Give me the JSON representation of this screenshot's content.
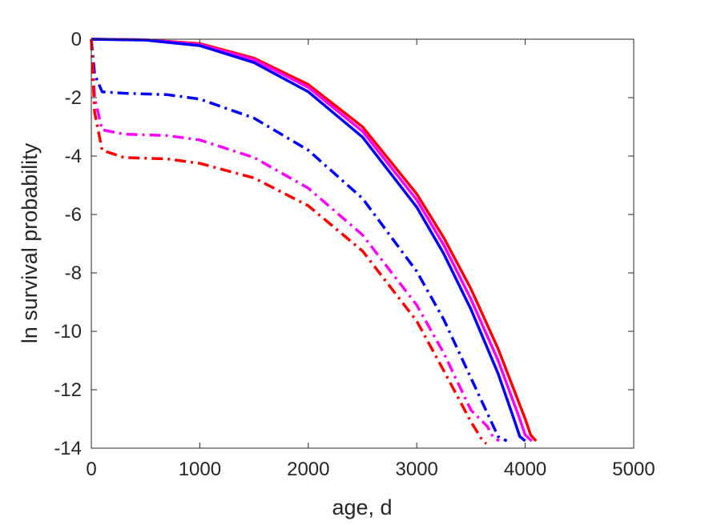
{
  "chart_data": {
    "type": "line",
    "title": "",
    "xlabel": "age, d",
    "ylabel": "ln survival probability",
    "xlim": [
      0,
      5000
    ],
    "ylim": [
      -14,
      0
    ],
    "xticks": [
      0,
      1000,
      2000,
      3000,
      4000,
      5000
    ],
    "yticks": [
      0,
      -2,
      -4,
      -6,
      -8,
      -10,
      -12,
      -14
    ],
    "xtick_labels": [
      "0",
      "1000",
      "2000",
      "3000",
      "4000",
      "5000"
    ],
    "ytick_labels": [
      "0",
      "-2",
      "-4",
      "-6",
      "-8",
      "-10",
      "-12",
      "-14"
    ],
    "grid": false,
    "legend": "none",
    "series": [
      {
        "color": "#ff0000",
        "style": "solid",
        "x": [
          0,
          500,
          1000,
          1500,
          2000,
          2500,
          3000,
          3250,
          3500,
          3750,
          4000,
          4050,
          4100
        ],
        "y": [
          0,
          -0.02,
          -0.15,
          -0.65,
          -1.55,
          -3.0,
          -5.3,
          -6.8,
          -8.55,
          -10.6,
          -13.0,
          -13.55,
          -13.75
        ]
      },
      {
        "color": "#ff00ff",
        "style": "solid",
        "x": [
          0,
          500,
          1000,
          1500,
          2000,
          2500,
          3000,
          3250,
          3500,
          3750,
          3950,
          4000,
          4060
        ],
        "y": [
          0,
          -0.02,
          -0.18,
          -0.7,
          -1.65,
          -3.15,
          -5.5,
          -7.05,
          -8.9,
          -11.0,
          -13.0,
          -13.55,
          -13.75
        ]
      },
      {
        "color": "#0000ff",
        "style": "solid",
        "x": [
          0,
          500,
          1000,
          1500,
          2000,
          2500,
          3000,
          3250,
          3500,
          3750,
          3900,
          3950,
          4000
        ],
        "y": [
          0,
          -0.03,
          -0.22,
          -0.8,
          -1.8,
          -3.35,
          -5.75,
          -7.35,
          -9.25,
          -11.45,
          -13.05,
          -13.6,
          -13.75
        ]
      },
      {
        "color": "#0000ff",
        "style": "dashdot",
        "x": [
          0,
          30,
          100,
          300,
          700,
          1000,
          1500,
          2000,
          2500,
          3000,
          3250,
          3500,
          3700,
          3750,
          3830
        ],
        "y": [
          0,
          -1.2,
          -1.8,
          -1.85,
          -1.9,
          -2.05,
          -2.7,
          -3.8,
          -5.45,
          -7.95,
          -9.6,
          -11.6,
          -13.2,
          -13.6,
          -13.75
        ]
      },
      {
        "color": "#ff00ff",
        "style": "dashdot",
        "x": [
          0,
          30,
          100,
          300,
          700,
          1000,
          1500,
          2000,
          2500,
          3000,
          3250,
          3500,
          3650,
          3700,
          3760
        ],
        "y": [
          0,
          -2.0,
          -3.1,
          -3.25,
          -3.3,
          -3.45,
          -4.05,
          -5.1,
          -6.7,
          -9.1,
          -10.75,
          -12.7,
          -13.25,
          -13.6,
          -13.75
        ]
      },
      {
        "color": "#ff0000",
        "style": "dashdot",
        "x": [
          0,
          30,
          100,
          300,
          700,
          1000,
          1500,
          2000,
          2500,
          3000,
          3250,
          3500,
          3600,
          3640
        ],
        "y": [
          0,
          -2.5,
          -3.8,
          -4.05,
          -4.1,
          -4.25,
          -4.75,
          -5.7,
          -7.25,
          -9.65,
          -11.35,
          -13.1,
          -13.7,
          -13.85
        ]
      }
    ]
  }
}
